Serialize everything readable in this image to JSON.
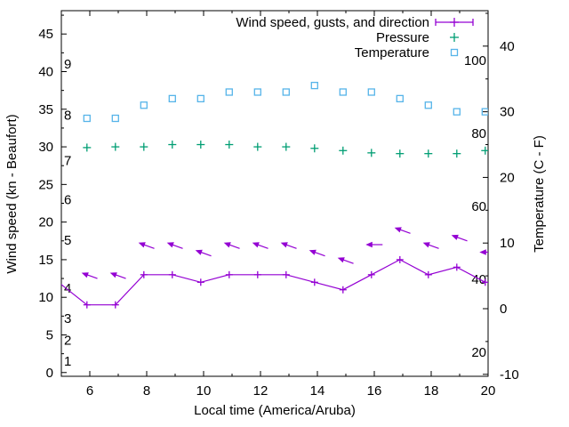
{
  "axes": {
    "x_label": "Local time (America/Aruba)",
    "left_label": "Wind speed (kn - Beaufort)",
    "right_label": "Temperature (C - F)",
    "x_range": [
      5,
      20
    ],
    "x_major_ticks": [
      6,
      8,
      10,
      12,
      14,
      16,
      18,
      20
    ],
    "x_minor_ticks": [
      7,
      9,
      11,
      13,
      15,
      17,
      19
    ],
    "left_range": [
      -0.5,
      48.1
    ],
    "left_major_ticks": [
      0,
      5,
      10,
      15,
      20,
      25,
      30,
      35,
      40,
      45
    ],
    "left_minor_ticks": [
      2.5,
      7.5,
      12.5,
      17.5,
      22.5,
      27.5,
      32.5,
      37.5,
      42.5,
      47.5
    ],
    "right_range": [
      -10.3,
      45.4
    ],
    "right_major_ticks": [
      -10,
      0,
      10,
      20,
      30,
      40
    ],
    "right_minor_ticks": [
      -5,
      5,
      15,
      25,
      35,
      45
    ],
    "beaufort_labels": [
      {
        "text": "1",
        "kn": 1.5
      },
      {
        "text": "2",
        "kn": 4.3
      },
      {
        "text": "3",
        "kn": 7.2
      },
      {
        "text": "4",
        "kn": 11.2
      },
      {
        "text": "5",
        "kn": 17.6
      },
      {
        "text": "6",
        "kn": 23
      },
      {
        "text": "7",
        "kn": 28.2
      },
      {
        "text": "8",
        "kn": 34.2
      },
      {
        "text": "9",
        "kn": 41
      }
    ],
    "fahrenheit_labels": [
      {
        "text": "20",
        "f": 20
      },
      {
        "text": "40",
        "f": 40
      },
      {
        "text": "60",
        "f": 60
      },
      {
        "text": "80",
        "f": 80
      },
      {
        "text": "100",
        "f": 100
      }
    ]
  },
  "legend": {
    "items": [
      {
        "label": "Wind speed, gusts, and direction",
        "marker": "line-with-point",
        "color": "#9400d3"
      },
      {
        "label": "Pressure",
        "marker": "plus",
        "color": "#009e73"
      },
      {
        "label": "Temperature",
        "marker": "open-square",
        "color": "#56b4e9"
      }
    ]
  },
  "chart_data": {
    "type": "line",
    "title": "",
    "xlabel": "Local time (America/Aruba)",
    "ylabel_left": "Wind speed (kn - Beaufort)",
    "ylabel_right": "Temperature (C - F)",
    "x_range": [
      5,
      20
    ],
    "left_axis_range_kn": [
      -0.5,
      48.1
    ],
    "right_axis_range_c": [
      -10.3,
      45.4
    ],
    "grid": false,
    "legend_position": "top-right-inside",
    "x": [
      5.9,
      6.9,
      7.9,
      8.9,
      9.9,
      10.9,
      11.9,
      12.9,
      13.9,
      14.9,
      15.9,
      16.9,
      17.9,
      18.9,
      19.9
    ],
    "series": [
      {
        "name": "Wind speed",
        "units": "kn",
        "axis": "left",
        "color": "#9400d3",
        "style": "line with plus markers",
        "line_entry_point": {
          "x": 4.9,
          "value": 12
        },
        "values": [
          9,
          9,
          13,
          13,
          12,
          13,
          13,
          13,
          12,
          11,
          13,
          15,
          13,
          14,
          12
        ]
      },
      {
        "name": "Wind gusts",
        "units": "kn",
        "axis": "left",
        "color": "#9400d3",
        "style": "direction arrows plotted at gust value",
        "values": [
          13,
          13,
          17,
          17,
          16,
          17,
          17,
          17,
          16,
          15,
          17,
          19,
          17,
          18,
          16
        ]
      },
      {
        "name": "Wind direction",
        "units": "degrees (meteorological, wind from)",
        "values": [
          110,
          110,
          110,
          110,
          110,
          110,
          110,
          110,
          110,
          110,
          90,
          110,
          110,
          110,
          90
        ]
      },
      {
        "name": "Pressure",
        "units": "unlabeled axis; values read on left kn scale",
        "axis": "left",
        "color": "#009e73",
        "style": "plus markers",
        "values": [
          29.9,
          30.0,
          30.0,
          30.3,
          30.3,
          30.3,
          30.0,
          30.0,
          29.8,
          29.5,
          29.2,
          29.1,
          29.1,
          29.1,
          29.5
        ]
      },
      {
        "name": "Temperature",
        "units": "C",
        "axis": "right",
        "color": "#56b4e9",
        "style": "open square markers",
        "values": [
          29,
          29,
          31,
          32,
          32,
          33,
          33,
          33,
          34,
          33,
          33,
          32,
          31,
          30,
          30
        ]
      }
    ]
  },
  "colors": {
    "background": "#ffffff",
    "axis": "#000000",
    "text": "#000000",
    "wind": "#9400d3",
    "pressure": "#009e73",
    "temperature": "#56b4e9"
  }
}
